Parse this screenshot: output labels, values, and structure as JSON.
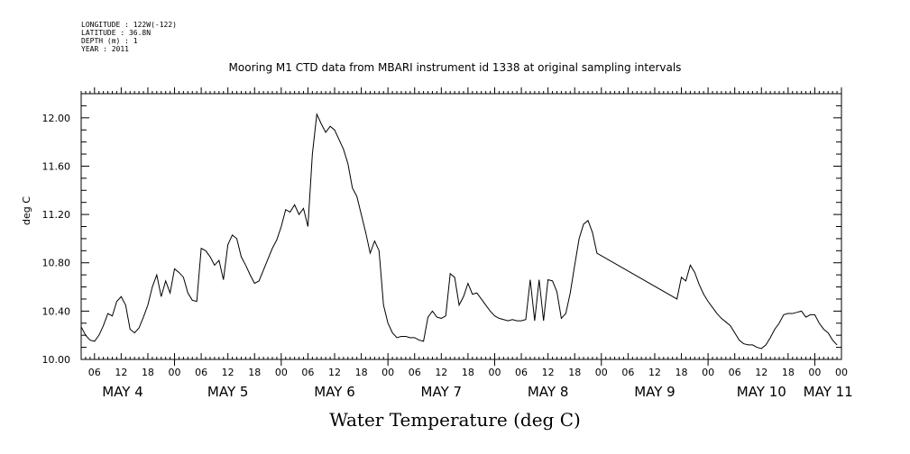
{
  "header": {
    "longitude": "LONGITUDE : 122W(-122)",
    "latitude": "LATITUDE : 36.8N",
    "depth": "DEPTH (m) : 1",
    "year": "YEAR : 2011"
  },
  "chart_data": {
    "type": "line",
    "title": "Mooring M1 CTD data from MBARI instrument id 1338 at original sampling intervals",
    "xlabel": "Water Temperature (deg C)",
    "ylabel": "deg C",
    "ylim": [
      10.0,
      12.2
    ],
    "xlim": [
      "2011-05-04T03:00",
      "2011-05-11T06:00"
    ],
    "yticks": [
      "10.00",
      "10.40",
      "10.80",
      "11.20",
      "11.60",
      "12.00"
    ],
    "hour_ticks": [
      "06",
      "12",
      "18",
      "00",
      "06",
      "12",
      "18",
      "00",
      "06",
      "12",
      "18",
      "00",
      "06",
      "12",
      "18",
      "00",
      "06",
      "12",
      "18",
      "00",
      "06",
      "12",
      "18",
      "00",
      "06",
      "12",
      "18",
      "00",
      "00"
    ],
    "day_labels": [
      "MAY 4",
      "MAY 5",
      "MAY 6",
      "MAY 7",
      "MAY 8",
      "MAY 9",
      "MAY 10",
      "MAY 11"
    ],
    "grid": false,
    "series": [
      {
        "color": "#000000",
        "points": [
          [
            "2011-05-04T03:00",
            10.27
          ],
          [
            "2011-05-04T04:00",
            10.2
          ],
          [
            "2011-05-04T05:00",
            10.16
          ],
          [
            "2011-05-04T06:00",
            10.15
          ],
          [
            "2011-05-04T07:00",
            10.2
          ],
          [
            "2011-05-04T08:00",
            10.28
          ],
          [
            "2011-05-04T09:00",
            10.38
          ],
          [
            "2011-05-04T10:00",
            10.36
          ],
          [
            "2011-05-04T11:00",
            10.48
          ],
          [
            "2011-05-04T12:00",
            10.52
          ],
          [
            "2011-05-04T13:00",
            10.45
          ],
          [
            "2011-05-04T14:00",
            10.25
          ],
          [
            "2011-05-04T15:00",
            10.22
          ],
          [
            "2011-05-04T16:00",
            10.26
          ],
          [
            "2011-05-04T17:00",
            10.35
          ],
          [
            "2011-05-04T18:00",
            10.45
          ],
          [
            "2011-05-04T19:00",
            10.6
          ],
          [
            "2011-05-04T20:00",
            10.7
          ],
          [
            "2011-05-04T21:00",
            10.52
          ],
          [
            "2011-05-04T22:00",
            10.65
          ],
          [
            "2011-05-04T23:00",
            10.55
          ],
          [
            "2011-05-05T00:00",
            10.75
          ],
          [
            "2011-05-05T01:00",
            10.72
          ],
          [
            "2011-05-05T02:00",
            10.68
          ],
          [
            "2011-05-05T03:00",
            10.55
          ],
          [
            "2011-05-05T04:00",
            10.49
          ],
          [
            "2011-05-05T05:00",
            10.48
          ],
          [
            "2011-05-05T06:00",
            10.92
          ],
          [
            "2011-05-05T07:00",
            10.9
          ],
          [
            "2011-05-05T08:00",
            10.85
          ],
          [
            "2011-05-05T09:00",
            10.78
          ],
          [
            "2011-05-05T10:00",
            10.82
          ],
          [
            "2011-05-05T11:00",
            10.66
          ],
          [
            "2011-05-05T12:00",
            10.95
          ],
          [
            "2011-05-05T13:00",
            11.03
          ],
          [
            "2011-05-05T14:00",
            11.0
          ],
          [
            "2011-05-05T15:00",
            10.85
          ],
          [
            "2011-05-05T16:00",
            10.78
          ],
          [
            "2011-05-05T17:00",
            10.7
          ],
          [
            "2011-05-05T18:00",
            10.63
          ],
          [
            "2011-05-05T19:00",
            10.65
          ],
          [
            "2011-05-05T20:00",
            10.74
          ],
          [
            "2011-05-05T21:00",
            10.83
          ],
          [
            "2011-05-05T22:00",
            10.92
          ],
          [
            "2011-05-05T23:00",
            10.99
          ],
          [
            "2011-05-06T00:00",
            11.1
          ],
          [
            "2011-05-06T01:00",
            11.24
          ],
          [
            "2011-05-06T02:00",
            11.22
          ],
          [
            "2011-05-06T03:00",
            11.28
          ],
          [
            "2011-05-06T04:00",
            11.2
          ],
          [
            "2011-05-06T05:00",
            11.25
          ],
          [
            "2011-05-06T06:00",
            11.1
          ],
          [
            "2011-05-06T07:00",
            11.7
          ],
          [
            "2011-05-06T08:00",
            12.03
          ],
          [
            "2011-05-06T09:00",
            11.95
          ],
          [
            "2011-05-06T10:00",
            11.88
          ],
          [
            "2011-05-06T11:00",
            11.93
          ],
          [
            "2011-05-06T12:00",
            11.9
          ],
          [
            "2011-05-06T13:00",
            11.82
          ],
          [
            "2011-05-06T14:00",
            11.74
          ],
          [
            "2011-05-06T15:00",
            11.62
          ],
          [
            "2011-05-06T16:00",
            11.42
          ],
          [
            "2011-05-06T17:00",
            11.35
          ],
          [
            "2011-05-06T18:00",
            11.2
          ],
          [
            "2011-05-06T19:00",
            11.05
          ],
          [
            "2011-05-06T20:00",
            10.88
          ],
          [
            "2011-05-06T21:00",
            10.98
          ],
          [
            "2011-05-06T22:00",
            10.9
          ],
          [
            "2011-05-06T23:00",
            10.45
          ],
          [
            "2011-05-07T00:00",
            10.3
          ],
          [
            "2011-05-07T01:00",
            10.22
          ],
          [
            "2011-05-07T02:00",
            10.18
          ],
          [
            "2011-05-07T03:00",
            10.19
          ],
          [
            "2011-05-07T04:00",
            10.19
          ],
          [
            "2011-05-07T05:00",
            10.18
          ],
          [
            "2011-05-07T06:00",
            10.18
          ],
          [
            "2011-05-07T07:00",
            10.16
          ],
          [
            "2011-05-07T08:00",
            10.15
          ],
          [
            "2011-05-07T09:00",
            10.35
          ],
          [
            "2011-05-07T10:00",
            10.4
          ],
          [
            "2011-05-07T11:00",
            10.35
          ],
          [
            "2011-05-07T12:00",
            10.34
          ],
          [
            "2011-05-07T13:00",
            10.36
          ],
          [
            "2011-05-07T14:00",
            10.71
          ],
          [
            "2011-05-07T15:00",
            10.68
          ],
          [
            "2011-05-07T16:00",
            10.45
          ],
          [
            "2011-05-07T17:00",
            10.52
          ],
          [
            "2011-05-07T18:00",
            10.63
          ],
          [
            "2011-05-07T19:00",
            10.54
          ],
          [
            "2011-05-07T20:00",
            10.55
          ],
          [
            "2011-05-07T21:00",
            10.5
          ],
          [
            "2011-05-07T22:00",
            10.45
          ],
          [
            "2011-05-07T23:00",
            10.4
          ],
          [
            "2011-05-08T00:00",
            10.36
          ],
          [
            "2011-05-08T01:00",
            10.34
          ],
          [
            "2011-05-08T02:00",
            10.33
          ],
          [
            "2011-05-08T03:00",
            10.32
          ],
          [
            "2011-05-08T04:00",
            10.33
          ],
          [
            "2011-05-08T05:00",
            10.32
          ],
          [
            "2011-05-08T06:00",
            10.32
          ],
          [
            "2011-05-08T07:00",
            10.33
          ],
          [
            "2011-05-08T08:00",
            10.66
          ],
          [
            "2011-05-08T09:00",
            10.32
          ],
          [
            "2011-05-08T10:00",
            10.66
          ],
          [
            "2011-05-08T11:00",
            10.32
          ],
          [
            "2011-05-08T12:00",
            10.66
          ],
          [
            "2011-05-08T13:00",
            10.65
          ],
          [
            "2011-05-08T14:00",
            10.56
          ],
          [
            "2011-05-08T15:00",
            10.34
          ],
          [
            "2011-05-08T16:00",
            10.38
          ],
          [
            "2011-05-08T17:00",
            10.55
          ],
          [
            "2011-05-08T18:00",
            10.78
          ],
          [
            "2011-05-08T19:00",
            11.0
          ],
          [
            "2011-05-08T20:00",
            11.12
          ],
          [
            "2011-05-08T21:00",
            11.15
          ],
          [
            "2011-05-08T22:00",
            11.05
          ],
          [
            "2011-05-08T23:00",
            10.88
          ],
          [
            "2011-05-09T17:00",
            10.5
          ],
          [
            "2011-05-09T18:00",
            10.68
          ],
          [
            "2011-05-09T19:00",
            10.65
          ],
          [
            "2011-05-09T20:00",
            10.78
          ],
          [
            "2011-05-09T21:00",
            10.72
          ],
          [
            "2011-05-09T22:00",
            10.62
          ],
          [
            "2011-05-09T23:00",
            10.54
          ],
          [
            "2011-05-10T00:00",
            10.48
          ],
          [
            "2011-05-10T01:00",
            10.43
          ],
          [
            "2011-05-10T02:00",
            10.38
          ],
          [
            "2011-05-10T03:00",
            10.34
          ],
          [
            "2011-05-10T04:00",
            10.31
          ],
          [
            "2011-05-10T05:00",
            10.28
          ],
          [
            "2011-05-10T06:00",
            10.22
          ],
          [
            "2011-05-10T07:00",
            10.16
          ],
          [
            "2011-05-10T08:00",
            10.13
          ],
          [
            "2011-05-10T09:00",
            10.12
          ],
          [
            "2011-05-10T10:00",
            10.12
          ],
          [
            "2011-05-10T11:00",
            10.1
          ],
          [
            "2011-05-10T12:00",
            10.09
          ],
          [
            "2011-05-10T13:00",
            10.12
          ],
          [
            "2011-05-10T14:00",
            10.18
          ],
          [
            "2011-05-10T15:00",
            10.25
          ],
          [
            "2011-05-10T16:00",
            10.3
          ],
          [
            "2011-05-10T17:00",
            10.37
          ],
          [
            "2011-05-10T18:00",
            10.38
          ],
          [
            "2011-05-10T19:00",
            10.38
          ],
          [
            "2011-05-10T20:00",
            10.39
          ],
          [
            "2011-05-10T21:00",
            10.4
          ],
          [
            "2011-05-10T22:00",
            10.35
          ],
          [
            "2011-05-10T23:00",
            10.37
          ],
          [
            "2011-05-11T00:00",
            10.37
          ],
          [
            "2011-05-11T01:00",
            10.3
          ],
          [
            "2011-05-11T02:00",
            10.25
          ],
          [
            "2011-05-11T03:00",
            10.22
          ],
          [
            "2011-05-11T04:00",
            10.16
          ],
          [
            "2011-05-11T05:00",
            10.12
          ]
        ]
      }
    ]
  }
}
